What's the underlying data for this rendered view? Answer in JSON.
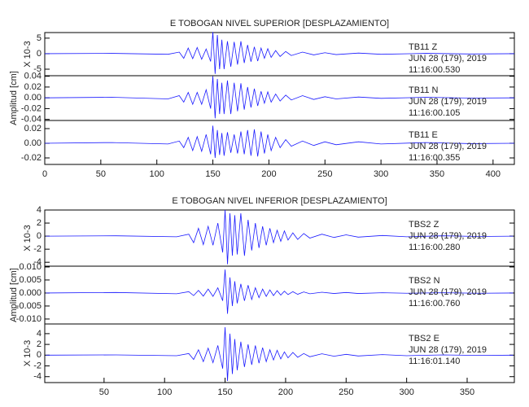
{
  "chart_data": [
    {
      "type": "line",
      "title": "E TOBOGAN NIVEL SUPERIOR [DESPLAZAMIENTO]",
      "multiplier_label": "X 10-3",
      "color": "#1a1aff",
      "annotations": [
        "TB11   Z",
        "JUN 28 (179), 2019",
        "11:16:00.530"
      ],
      "xlim": [
        0,
        419
      ],
      "ylim": [
        -7.1,
        6.8
      ],
      "yticks": [
        5,
        0,
        -5
      ],
      "x": [
        0,
        60,
        110,
        120,
        124,
        128,
        132,
        136,
        140,
        144,
        148,
        150,
        152,
        154,
        156,
        158,
        160,
        163,
        166,
        169,
        172,
        175,
        178,
        181,
        184,
        187,
        190,
        193,
        196,
        199,
        202,
        206,
        210,
        215,
        220,
        230,
        240,
        250,
        260,
        280,
        300,
        340,
        380,
        419
      ],
      "values": [
        0,
        0.1,
        -0.2,
        0.5,
        -1.5,
        1.8,
        -1.6,
        2,
        -1.8,
        1.5,
        -2.5,
        7,
        -6.5,
        6,
        -5,
        4.5,
        -5,
        4,
        -4.2,
        3.8,
        -3.5,
        4,
        -3,
        2.8,
        -2.6,
        2.2,
        -2.4,
        1.8,
        -1.5,
        1.6,
        -1.2,
        1,
        -0.9,
        0.7,
        -0.6,
        0.5,
        -0.4,
        0.3,
        -0.3,
        0.2,
        -0.2,
        0.1,
        -0.1,
        0
      ]
    },
    {
      "type": "line",
      "y_label": "Amplitud [cm]",
      "color": "#1a1aff",
      "annotations": [
        "TB11   N",
        "JUN 28 (179), 2019",
        "11:16:00.105"
      ],
      "xlim": [
        0,
        419
      ],
      "ylim": [
        -0.042,
        0.041
      ],
      "yticks": [
        0.04,
        0.02,
        {
          "value": 0,
          "label": "0.00"
        },
        -0.02,
        -0.04
      ],
      "x": [
        0,
        60,
        110,
        120,
        124,
        128,
        132,
        136,
        140,
        144,
        148,
        150,
        152,
        154,
        156,
        158,
        160,
        163,
        166,
        169,
        172,
        175,
        178,
        181,
        184,
        187,
        190,
        193,
        196,
        199,
        202,
        206,
        210,
        215,
        220,
        230,
        240,
        250,
        260,
        280,
        300,
        340,
        380,
        419
      ],
      "values": [
        0,
        0.001,
        -0.002,
        0.004,
        -0.008,
        0.01,
        -0.012,
        0.01,
        -0.012,
        0.015,
        -0.02,
        0.04,
        -0.038,
        0.035,
        -0.03,
        0.028,
        -0.03,
        0.032,
        -0.03,
        0.028,
        -0.025,
        0.027,
        -0.022,
        0.02,
        -0.018,
        0.017,
        -0.015,
        0.012,
        -0.01,
        0.011,
        -0.008,
        0.007,
        -0.006,
        0.005,
        -0.004,
        0.004,
        -0.003,
        0.002,
        -0.002,
        0.0015,
        -0.001,
        0.001,
        -0.0005,
        0
      ]
    },
    {
      "type": "line",
      "color": "#1a1aff",
      "annotations": [
        "TB11   E",
        "JUN 28 (179), 2019",
        "11:16:00.355"
      ],
      "xlim": [
        0,
        419
      ],
      "ylim": [
        -0.0289,
        0.0311
      ],
      "yticks": [
        0.02,
        {
          "value": 0,
          "label": "0.00"
        },
        -0.02
      ],
      "xticks": [
        0,
        50,
        100,
        150,
        200,
        250,
        300,
        350,
        400
      ],
      "x": [
        0,
        60,
        110,
        120,
        124,
        128,
        132,
        136,
        140,
        144,
        148,
        150,
        152,
        154,
        156,
        158,
        160,
        163,
        166,
        169,
        172,
        175,
        178,
        181,
        184,
        187,
        190,
        193,
        196,
        199,
        202,
        206,
        210,
        215,
        220,
        230,
        240,
        250,
        260,
        280,
        300,
        340,
        380,
        419
      ],
      "values": [
        0,
        0.001,
        -0.001,
        0.003,
        -0.006,
        0.008,
        -0.01,
        0.009,
        -0.011,
        0.012,
        -0.015,
        0.024,
        -0.02,
        0.018,
        -0.016,
        0.014,
        -0.017,
        0.015,
        -0.013,
        0.012,
        -0.014,
        0.016,
        -0.015,
        0.018,
        -0.017,
        0.019,
        -0.018,
        0.016,
        -0.014,
        0.012,
        -0.01,
        0.008,
        -0.006,
        0.005,
        -0.004,
        0.003,
        -0.003,
        0.002,
        -0.002,
        0.002,
        -0.001,
        0.001,
        -0.0005,
        0
      ]
    },
    {
      "type": "line",
      "title": "E TOBOGAN NIVEL INFERIOR [DESPLAZAMIENTO]",
      "multiplier_label": "X 10-3",
      "color": "#1a1aff",
      "annotations": [
        "TBS2   Z",
        "JUN 28 (179), 2019",
        "11:16:00.280"
      ],
      "xlim": [
        1,
        389
      ],
      "ylim": [
        -4.6,
        4
      ],
      "yticks": [
        4,
        2,
        0,
        -2,
        -4
      ],
      "x": [
        2,
        60,
        110,
        120,
        124,
        128,
        132,
        136,
        140,
        144,
        148,
        150,
        152,
        154,
        156,
        158,
        160,
        163,
        166,
        169,
        172,
        175,
        178,
        181,
        184,
        187,
        190,
        193,
        196,
        199,
        202,
        206,
        210,
        215,
        220,
        230,
        240,
        250,
        260,
        280,
        300,
        330,
        360,
        388
      ],
      "values": [
        0,
        0.05,
        -0.1,
        0.3,
        -1,
        1.2,
        -1.3,
        1.5,
        -1.4,
        2,
        -2.5,
        4,
        -4.3,
        3.5,
        -3,
        3.2,
        -2.8,
        3.5,
        -3,
        2.5,
        -2.2,
        2,
        -1.8,
        1.5,
        -1.4,
        1.2,
        -1,
        0.9,
        -0.8,
        0.8,
        -0.6,
        0.5,
        -0.5,
        0.4,
        -0.3,
        0.3,
        -0.2,
        0.2,
        -0.15,
        0.1,
        -0.1,
        0.05,
        -0.05,
        0
      ]
    },
    {
      "type": "line",
      "y_label": "Amplitud [cm]",
      "color": "#1a1aff",
      "annotations": [
        "TBS2   N",
        "JUN 28 (179), 2019",
        "11:16:00.760"
      ],
      "xlim": [
        1,
        389
      ],
      "ylim": [
        -0.0119,
        0.0103
      ],
      "yticks": [
        {
          "value": 0.01,
          "label": "0.010"
        },
        0.005,
        {
          "value": 0,
          "label": "0.000"
        },
        -0.005,
        {
          "value": -0.01,
          "label": "-0.010"
        }
      ],
      "x": [
        2,
        60,
        110,
        120,
        124,
        128,
        132,
        136,
        140,
        144,
        148,
        150,
        152,
        154,
        156,
        158,
        160,
        163,
        166,
        169,
        172,
        175,
        178,
        181,
        184,
        187,
        190,
        193,
        196,
        199,
        202,
        206,
        210,
        215,
        220,
        230,
        240,
        250,
        260,
        280,
        300,
        330,
        360,
        388
      ],
      "values": [
        0,
        0.0002,
        -0.0003,
        0.0005,
        -0.001,
        0.001,
        -0.0012,
        0.0015,
        -0.0013,
        0.002,
        -0.003,
        0.009,
        -0.008,
        0.006,
        -0.005,
        0.0045,
        -0.004,
        0.0035,
        -0.003,
        0.003,
        -0.0025,
        0.002,
        -0.0018,
        0.0015,
        -0.0013,
        0.0012,
        -0.001,
        0.0009,
        -0.0008,
        0.0007,
        -0.0006,
        0.0005,
        -0.0005,
        0.0004,
        -0.0003,
        0.0003,
        -0.0002,
        0.0002,
        -0.0002,
        0.0001,
        -0.0001,
        0.0001,
        -0.0001,
        0
      ]
    },
    {
      "type": "line",
      "multiplier_label": "X 10-3",
      "color": "#1a1aff",
      "annotations": [
        "TBS2   E",
        "JUN 28 (179), 2019",
        "11:16:01.140"
      ],
      "xlim": [
        1,
        389
      ],
      "ylim": [
        -5.1,
        5.8
      ],
      "yticks": [
        4,
        2,
        0,
        -2,
        -4
      ],
      "xticks": [
        50,
        100,
        150,
        200,
        250,
        300,
        350
      ],
      "x": [
        2,
        60,
        110,
        120,
        124,
        128,
        132,
        136,
        140,
        144,
        148,
        150,
        152,
        154,
        156,
        158,
        160,
        163,
        166,
        169,
        172,
        175,
        178,
        181,
        184,
        187,
        190,
        193,
        196,
        199,
        202,
        206,
        210,
        215,
        220,
        230,
        240,
        250,
        260,
        280,
        300,
        330,
        360,
        388
      ],
      "values": [
        0,
        0.05,
        -0.1,
        0.3,
        -0.8,
        1,
        -1.2,
        1.3,
        -1.4,
        1.8,
        -2.5,
        5.2,
        -4.8,
        4,
        -3.5,
        3,
        -2.8,
        2.5,
        -2.2,
        2,
        -1.8,
        1.8,
        -1.5,
        1.4,
        -1.2,
        1,
        -0.9,
        0.9,
        -0.7,
        0.6,
        -0.5,
        0.5,
        -0.4,
        0.3,
        -0.3,
        0.25,
        -0.2,
        0.15,
        -0.15,
        0.1,
        -0.1,
        0.05,
        -0.05,
        0
      ]
    }
  ]
}
